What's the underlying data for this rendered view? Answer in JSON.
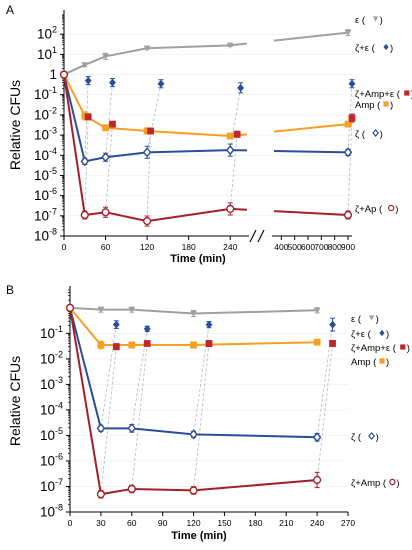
{
  "colors": {
    "epsilon": "#a0a0a0",
    "zeta_eps": "#2a4e9c",
    "zeta_amp_eps": "#c0282e",
    "amp": "#f4a023",
    "zeta": "#2c4d97",
    "zeta_amp": "#a3202a",
    "axis": "#000000",
    "guide": "#b8b8b8"
  },
  "chart_data": [
    {
      "panel_label": "A",
      "type": "line",
      "log_y": true,
      "ylabel": "Relative CFUs",
      "xlabel": "Time (min)",
      "ylim": [
        1e-08,
        1000
      ],
      "ytick_labels": [
        {
          "value": 100,
          "base": "10",
          "exp": "2"
        },
        {
          "value": 10,
          "base": "10",
          "exp": "1"
        },
        {
          "value": 1,
          "base": "1",
          "exp": ""
        },
        {
          "value": 0.1,
          "base": "10",
          "exp": "-1"
        },
        {
          "value": 0.01,
          "base": "10",
          "exp": "-2"
        },
        {
          "value": 0.001,
          "base": "10",
          "exp": "-3"
        },
        {
          "value": 0.0001,
          "base": "10",
          "exp": "-4"
        },
        {
          "value": 1e-05,
          "base": "10",
          "exp": "-5"
        },
        {
          "value": 1e-06,
          "base": "10",
          "exp": "-6"
        },
        {
          "value": 1e-07,
          "base": "10",
          "exp": "-7"
        },
        {
          "value": 1e-08,
          "base": "10",
          "exp": "-8"
        }
      ],
      "xticks": [
        "0",
        "60",
        "120",
        "180",
        "240",
        "400",
        "500",
        "600",
        "700",
        "800",
        "900"
      ],
      "x_axis_break": "between 240 and 400",
      "series": [
        {
          "name": "ε",
          "key": "epsilon",
          "marker": "tri",
          "x": [
            0,
            30,
            60,
            120,
            240,
            900
          ],
          "y": [
            1,
            3,
            8,
            20,
            28,
            120
          ],
          "err": [
            0.05,
            0.08,
            0.15,
            0.05,
            0.05,
            0.15
          ],
          "line": true
        },
        {
          "name": "Amp",
          "key": "amp",
          "marker": "square",
          "x": [
            0,
            30,
            60,
            120,
            240,
            900
          ],
          "y": [
            1,
            0.009,
            0.0023,
            0.0016,
            0.0009,
            0.0035
          ],
          "err": [
            0.05,
            0.2,
            0.1,
            0.15,
            0.12,
            0.12
          ],
          "line": true
        },
        {
          "name": "ζ",
          "key": "zeta",
          "marker": "diamond-open",
          "x": [
            0,
            30,
            60,
            120,
            240,
            900
          ],
          "y": [
            1,
            5e-05,
            8e-05,
            0.00014,
            0.00018,
            0.00014
          ],
          "err": [
            0.05,
            0.15,
            0.2,
            0.3,
            0.3,
            0.15
          ],
          "line": true
        },
        {
          "name": "ζ+Ap",
          "key": "zeta_amp",
          "marker": "circle-open",
          "x": [
            0,
            30,
            60,
            120,
            240,
            900
          ],
          "y": [
            1,
            1.1e-07,
            1.5e-07,
            5.5e-08,
            2.2e-07,
            1.1e-07
          ],
          "err": [
            0.05,
            0.2,
            0.25,
            0.25,
            0.3,
            0.2
          ],
          "line": true
        },
        {
          "name": "ζ+ε",
          "key": "zeta_eps",
          "marker": "diamond",
          "x": [
            35,
            70,
            140,
            255,
            930
          ],
          "y": [
            0.5,
            0.4,
            0.35,
            0.22,
            0.35
          ],
          "err": [
            0.2,
            0.2,
            0.2,
            0.25,
            0.2
          ],
          "line": false
        },
        {
          "name": "ζ+Amp+ε",
          "key": "zeta_amp_eps",
          "marker": "square",
          "x": [
            35,
            70,
            125,
            250,
            930
          ],
          "y": [
            0.008,
            0.0035,
            0.0016,
            0.0011,
            0.007
          ],
          "err": [
            0.15,
            0.1,
            0.1,
            0.15,
            0.2
          ],
          "line": false
        }
      ],
      "legend": [
        {
          "label": "ε (",
          "key": "epsilon",
          "marker": "tri"
        },
        {
          "label": "ζ+ε (",
          "key": "zeta_eps",
          "marker": "diamond"
        },
        {
          "label": "ζ+Amp+ε (",
          "key": "zeta_amp_eps",
          "marker": "square"
        },
        {
          "label": "Amp (",
          "key": "amp",
          "marker": "square"
        },
        {
          "label": "ζ (",
          "key": "zeta",
          "marker": "diamond-open"
        },
        {
          "label": "ζ+Ap (",
          "key": "zeta_amp",
          "marker": "circle-open"
        }
      ]
    },
    {
      "panel_label": "B",
      "type": "line",
      "log_y": true,
      "ylabel": "Relative CFUs",
      "xlabel": "Time (min)",
      "ylim": [
        1e-08,
        5
      ],
      "ytick_labels": [
        {
          "value": 0.1,
          "base": "10",
          "exp": "-1"
        },
        {
          "value": 0.01,
          "base": "10",
          "exp": "-2"
        },
        {
          "value": 0.001,
          "base": "10",
          "exp": "-3"
        },
        {
          "value": 0.0001,
          "base": "10",
          "exp": "-4"
        },
        {
          "value": 1e-05,
          "base": "10",
          "exp": "-5"
        },
        {
          "value": 1e-06,
          "base": "10",
          "exp": "-6"
        },
        {
          "value": 1e-07,
          "base": "10",
          "exp": "-7"
        },
        {
          "value": 1e-08,
          "base": "10",
          "exp": "-8"
        }
      ],
      "xlim": [
        0,
        270
      ],
      "xticks": [
        "0",
        "30",
        "60",
        "90",
        "120",
        "150",
        "180",
        "210",
        "240",
        "270"
      ],
      "series": [
        {
          "name": "ε",
          "key": "epsilon",
          "marker": "tri",
          "x": [
            0,
            30,
            60,
            120,
            240
          ],
          "y": [
            1,
            0.85,
            0.85,
            0.6,
            0.8
          ],
          "err": [
            0.05,
            0.1,
            0.1,
            0.12,
            0.1
          ],
          "line": true
        },
        {
          "name": "Amp",
          "key": "amp",
          "marker": "square",
          "x": [
            0,
            30,
            60,
            120,
            240
          ],
          "y": [
            1,
            0.035,
            0.035,
            0.035,
            0.045
          ],
          "err": [
            0.05,
            0.15,
            0.12,
            0.12,
            0.1
          ],
          "line": true
        },
        {
          "name": "ζ",
          "key": "zeta",
          "marker": "diamond-open",
          "x": [
            0,
            30,
            60,
            120,
            240
          ],
          "y": [
            1,
            1.9e-05,
            1.9e-05,
            1.1e-05,
            8.5e-06
          ],
          "err": [
            0.05,
            0.12,
            0.15,
            0.12,
            0.15
          ],
          "line": true
        },
        {
          "name": "ζ+Amp",
          "key": "zeta_amp",
          "marker": "circle-open",
          "x": [
            0,
            30,
            60,
            120,
            240
          ],
          "y": [
            1,
            5e-08,
            8e-08,
            7e-08,
            1.8e-07
          ],
          "err": [
            0.05,
            0.15,
            0.15,
            0.15,
            0.3
          ],
          "line": true
        },
        {
          "name": "ζ+ε",
          "key": "zeta_eps",
          "marker": "diamond",
          "x": [
            45,
            75,
            135,
            255
          ],
          "y": [
            0.22,
            0.15,
            0.22,
            0.22
          ],
          "err": [
            0.15,
            0.1,
            0.12,
            0.25
          ],
          "line": false
        },
        {
          "name": "ζ+Amp+ε",
          "key": "zeta_amp_eps",
          "marker": "square",
          "x": [
            45,
            75,
            135,
            255
          ],
          "y": [
            0.03,
            0.04,
            0.04,
            0.04
          ],
          "err": [
            0.12,
            0.1,
            0.12,
            0.12
          ],
          "line": false
        }
      ],
      "legend": [
        {
          "label": "ε (",
          "key": "epsilon",
          "marker": "tri"
        },
        {
          "label": "ζ+ε (",
          "key": "zeta_eps",
          "marker": "diamond"
        },
        {
          "label": "ζ+Amp+ε (",
          "key": "zeta_amp_eps",
          "marker": "square"
        },
        {
          "label": "Amp (",
          "key": "amp",
          "marker": "square"
        },
        {
          "label": "ζ (",
          "key": "zeta",
          "marker": "diamond-open"
        },
        {
          "label": "ζ+Amp (",
          "key": "zeta_amp",
          "marker": "circle-open"
        }
      ]
    }
  ]
}
